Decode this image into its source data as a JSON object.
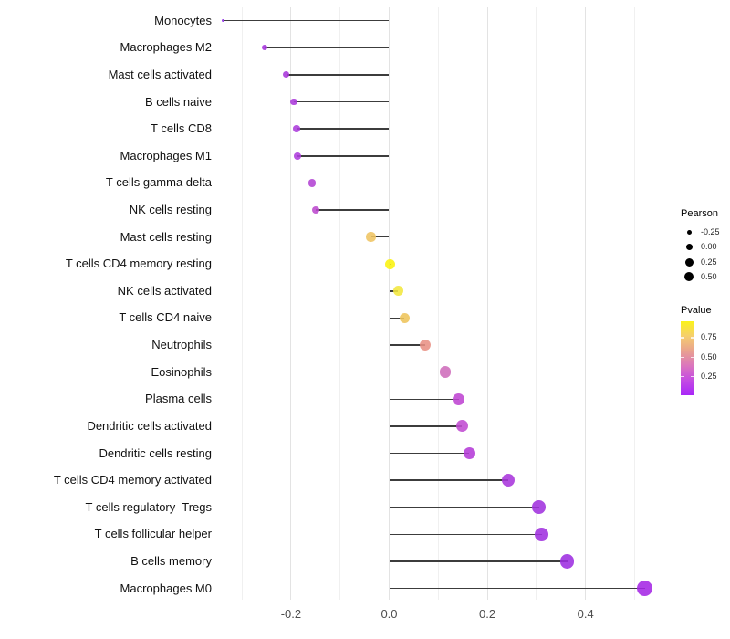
{
  "chart_data": {
    "type": "lollipop",
    "title": "",
    "xlabel": "",
    "ylabel": "",
    "x_tick_labels": [
      "-0.2",
      "0.0",
      "0.2",
      "0.4"
    ],
    "x_tick_values": [
      -0.2,
      0.0,
      0.2,
      0.4
    ],
    "xlim": [
      -0.38,
      0.56
    ],
    "grid": "vertical-only",
    "minor_grid_values": [
      -0.3,
      -0.1,
      0.1,
      0.3,
      0.5
    ],
    "points": [
      {
        "name": "Monocytes",
        "pearson": -0.338,
        "pvalue": 0.05,
        "color": "#8B2BE1"
      },
      {
        "name": "Macrophages M2",
        "pearson": -0.253,
        "pvalue": 0.13,
        "color": "#A432DB"
      },
      {
        "name": "Mast cells activated",
        "pearson": -0.21,
        "pvalue": 0.16,
        "color": "#A837DB"
      },
      {
        "name": "B cells naive",
        "pearson": -0.194,
        "pvalue": 0.17,
        "color": "#AB3ADB"
      },
      {
        "name": "T cells CD8",
        "pearson": -0.189,
        "pvalue": 0.18,
        "color": "#AC3CDC"
      },
      {
        "name": "Macrophages M1",
        "pearson": -0.187,
        "pvalue": 0.19,
        "color": "#AE3EDD"
      },
      {
        "name": "T cells gamma delta",
        "pearson": -0.157,
        "pvalue": 0.22,
        "color": "#B343D4"
      },
      {
        "name": "NK cells resting",
        "pearson": -0.15,
        "pvalue": 0.25,
        "color": "#BC49CE"
      },
      {
        "name": "Mast cells resting",
        "pearson": -0.037,
        "pvalue": 0.78,
        "color": "#EFC462"
      },
      {
        "name": "T cells CD4 memory resting",
        "pearson": 0.002,
        "pvalue": 0.96,
        "color": "#FBF30E"
      },
      {
        "name": "NK cells activated",
        "pearson": 0.018,
        "pvalue": 0.9,
        "color": "#F2E73E"
      },
      {
        "name": "T cells CD4 naive",
        "pearson": 0.031,
        "pvalue": 0.79,
        "color": "#EEC45A"
      },
      {
        "name": "Neutrophils",
        "pearson": 0.073,
        "pvalue": 0.55,
        "color": "#E89184"
      },
      {
        "name": "Eosinophils",
        "pearson": 0.114,
        "pvalue": 0.33,
        "color": "#CE6CBB"
      },
      {
        "name": "Plasma cells",
        "pearson": 0.142,
        "pvalue": 0.27,
        "color": "#BE44D1"
      },
      {
        "name": "Dendritic cells activated",
        "pearson": 0.148,
        "pvalue": 0.28,
        "color": "#C04BD2"
      },
      {
        "name": "Dendritic cells resting",
        "pearson": 0.163,
        "pvalue": 0.21,
        "color": "#B43BD7"
      },
      {
        "name": "T cells CD4 memory activated",
        "pearson": 0.242,
        "pvalue": 0.16,
        "color": "#A936DC"
      },
      {
        "name": "T cells regulatory  Tregs",
        "pearson": 0.305,
        "pvalue": 0.12,
        "color": "#A132DE"
      },
      {
        "name": "T cells follicular helper",
        "pearson": 0.311,
        "pvalue": 0.11,
        "color": "#A031DF"
      },
      {
        "name": "B cells memory",
        "pearson": 0.363,
        "pvalue": 0.09,
        "color": "#9D2FE0"
      },
      {
        "name": "Macrophages M0",
        "pearson": 0.521,
        "pvalue": 0.02,
        "color": "#A527E5"
      }
    ],
    "legend": {
      "size": {
        "title": "Pearson",
        "labels": [
          "-0.25",
          "0.00",
          "0.25",
          "0.50"
        ],
        "values": [
          -0.25,
          0.0,
          0.25,
          0.5
        ]
      },
      "color": {
        "title": "Pvalue",
        "labels": [
          "0.75",
          "0.50",
          "0.25"
        ],
        "values": [
          0.75,
          0.5,
          0.25
        ],
        "domain_top": 0.96,
        "domain_bottom": 0.012,
        "gradient": [
          "#FBF319",
          "#F5CE6E",
          "#E9A18F",
          "#DB76BD",
          "#C44BE3",
          "#A826F8"
        ]
      }
    },
    "colors": {
      "segment": "#3C3C3C",
      "grid_major": "#E3E3E3",
      "grid_minor": "#F0F0F0",
      "axis_text": "#4D4D4D",
      "label_text": "#111111",
      "legend_dot": "#000000"
    }
  }
}
